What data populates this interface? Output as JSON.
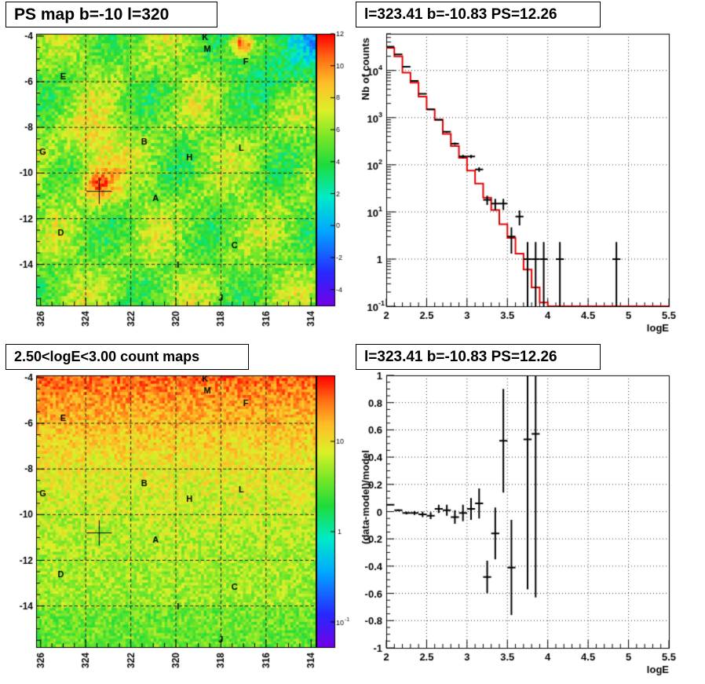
{
  "panels": {
    "map_top": {
      "title": "PS map b=-10 l=320",
      "colorbar_ticks": [
        "12",
        "10",
        "8",
        "6",
        "4",
        "2",
        "0",
        "-2",
        "-4"
      ],
      "x_ticks": [
        "326",
        "324",
        "322",
        "320",
        "318",
        "316",
        "314"
      ],
      "y_ticks": [
        "-4",
        "-6",
        "-8",
        "-10",
        "-12",
        "-14"
      ],
      "marker": {
        "l": 323.4,
        "b": -10.8
      }
    },
    "map_bottom": {
      "title": "2.50<logE<3.00 count maps",
      "colorbar_ticks": [
        "10",
        "1",
        "10-1"
      ],
      "x_ticks": [
        "326",
        "324",
        "322",
        "320",
        "318",
        "316",
        "314"
      ],
      "y_ticks": [
        "-4",
        "-6",
        "-8",
        "-10",
        "-12",
        "-14"
      ],
      "marker": {
        "l": 323.4,
        "b": -10.8
      }
    },
    "spectrum": {
      "title": "l=323.41 b=-10.83 PS=12.26",
      "ylabel": "Nb of counts",
      "xlabel": "logE"
    },
    "residual": {
      "title": "l=323.41 b=-10.83 PS=12.26",
      "ylabel": "(data-model)/model",
      "xlabel": "logE"
    }
  },
  "source_labels": [
    {
      "text": "K",
      "l": 318.7,
      "b": -4.05
    },
    {
      "text": "M",
      "l": 318.6,
      "b": -4.55
    },
    {
      "text": "F",
      "l": 316.9,
      "b": -5.1
    },
    {
      "text": "E",
      "l": 325.0,
      "b": -5.75
    },
    {
      "text": "B",
      "l": 321.4,
      "b": -8.6
    },
    {
      "text": "G",
      "l": 325.9,
      "b": -9.05
    },
    {
      "text": "L",
      "l": 317.1,
      "b": -8.9
    },
    {
      "text": "H",
      "l": 319.4,
      "b": -9.3
    },
    {
      "text": "A",
      "l": 320.9,
      "b": -11.1
    },
    {
      "text": "D",
      "l": 325.1,
      "b": -12.6
    },
    {
      "text": "C",
      "l": 317.4,
      "b": -13.15
    },
    {
      "text": "I",
      "l": 319.9,
      "b": -14.0
    },
    {
      "text": "J",
      "l": 318.0,
      "b": -15.45
    }
  ],
  "chart_data": [
    {
      "type": "heatmap",
      "title": "PS map b=-10 l=320",
      "xlim": [
        326.2,
        313.8
      ],
      "ylim": [
        -15.8,
        -3.9
      ],
      "zlim": [
        -5,
        12
      ],
      "grid": true
    },
    {
      "type": "line",
      "title": "l=323.41 b=-10.83 PS=12.26",
      "xlabel": "logE",
      "ylabel": "Nb of counts",
      "xlim": [
        2,
        5.5
      ],
      "ylim": [
        0.1,
        60000
      ],
      "yscale": "log",
      "grid": true,
      "model": {
        "step": 0.1,
        "x_start": 2.0,
        "values": [
          30000,
          20000,
          9000,
          5500,
          2800,
          1500,
          900,
          450,
          250,
          140,
          75,
          40,
          20,
          11,
          5.5,
          2.8,
          1.3,
          0.6,
          0.25,
          0.12,
          0.1,
          0.1,
          0.1,
          0.1,
          0.1,
          0.1,
          0.1,
          0.1,
          0.1,
          0.1,
          0.1,
          0.1,
          0.1,
          0.1,
          0.1
        ]
      },
      "data": {
        "x": [
          2.05,
          2.15,
          2.25,
          2.35,
          2.45,
          2.55,
          2.65,
          2.75,
          2.85,
          2.95,
          3.05,
          3.15,
          3.25,
          3.35,
          3.45,
          3.55,
          3.65,
          3.75,
          3.85,
          3.95,
          4.15,
          4.85
        ],
        "y": [
          32000,
          22000,
          12000,
          6000,
          3200,
          1500,
          900,
          500,
          280,
          150,
          150,
          80,
          18,
          15,
          15,
          3,
          8,
          1,
          1,
          1,
          1,
          1
        ],
        "ylow": [
          31800,
          21800,
          11800,
          5900,
          3140,
          1460,
          870,
          477,
          263,
          138,
          138,
          71,
          14,
          11,
          11,
          1.3,
          5.2,
          0.1,
          0.1,
          0.1,
          0.1,
          0.1
        ],
        "yhigh": [
          32200,
          22200,
          12200,
          6100,
          3260,
          1540,
          930,
          522,
          297,
          162,
          162,
          89,
          22,
          19,
          19,
          4.7,
          10.8,
          2.3,
          2.3,
          2.3,
          2.3,
          2.3
        ]
      }
    },
    {
      "type": "heatmap",
      "title": "2.50<logE<3.00 count maps",
      "xlim": [
        326.2,
        313.8
      ],
      "ylim": [
        -15.8,
        -3.9
      ],
      "zscale": "log",
      "grid": true
    },
    {
      "type": "scatter",
      "title": "l=323.41 b=-10.83 PS=12.26",
      "xlabel": "logE",
      "ylabel": "(data-model)/model",
      "xlim": [
        2,
        5.5
      ],
      "ylim": [
        -1,
        1
      ],
      "grid": true,
      "points": {
        "x": [
          2.05,
          2.15,
          2.25,
          2.35,
          2.45,
          2.55,
          2.65,
          2.75,
          2.85,
          2.95,
          3.05,
          3.15,
          3.25,
          3.35,
          3.45,
          3.55,
          3.75,
          3.85
        ],
        "y": [
          0.05,
          0.01,
          -0.01,
          -0.01,
          -0.02,
          -0.03,
          0.02,
          0.01,
          -0.04,
          -0.01,
          0.02,
          0.06,
          -0.48,
          -0.16,
          0.52,
          -0.41,
          0.53,
          0.57
        ],
        "err": [
          0.005,
          0.007,
          0.01,
          0.014,
          0.02,
          0.025,
          0.03,
          0.04,
          0.05,
          0.06,
          0.08,
          0.11,
          0.12,
          0.19,
          0.38,
          0.35,
          1.1,
          1.2
        ]
      }
    }
  ]
}
